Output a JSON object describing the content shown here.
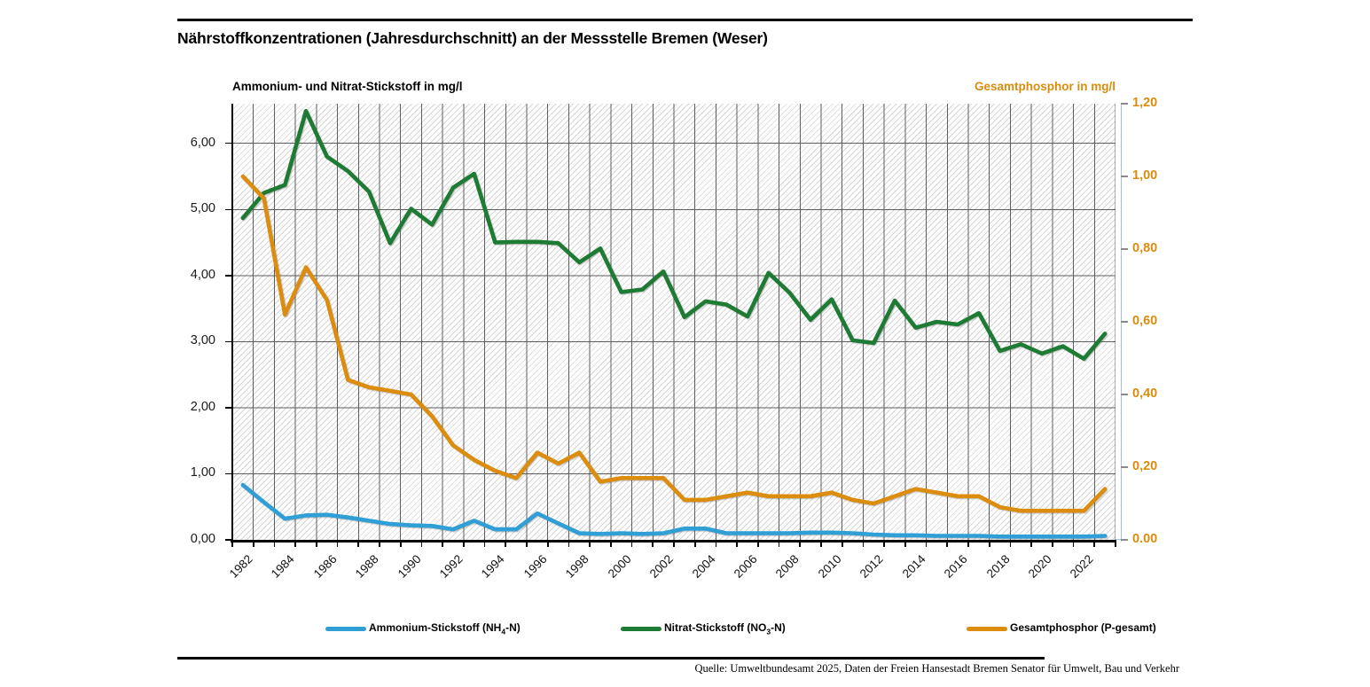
{
  "header": {
    "title": "Nährstoffkonzentrationen (Jahresdurchschnitt) an der Messstelle Bremen (Weser)"
  },
  "axes": {
    "left_title": "Ammonium- und Nitrat-Stickstoff in mg/l",
    "right_title": "Gesamtphosphor in mg/l",
    "left_ticks": [
      "0,00",
      "1,00",
      "2,00",
      "3,00",
      "4,00",
      "5,00",
      "6,00"
    ],
    "right_ticks": [
      "0.00",
      "0,20",
      "0,40",
      "0,60",
      "0,80",
      "1,00",
      "1,20"
    ],
    "x_tick_labels": [
      "1982",
      "1984",
      "1986",
      "1988",
      "1990",
      "1992",
      "1994",
      "1996",
      "1998",
      "2000",
      "2002",
      "2004",
      "2006",
      "2008",
      "2010",
      "2012",
      "2014",
      "2016",
      "2018",
      "2020",
      "2022"
    ]
  },
  "colors": {
    "ammonium": "#2f9fd6",
    "nitrat": "#1d7b34",
    "phosphor": "#dd8d0e",
    "grid": "#4d4d4d",
    "right_axis": "#a9c1d3"
  },
  "legend": [
    {
      "pre": "Ammonium-Stickstoff (NH",
      "sub": "4",
      "post": "-N)",
      "color_key": "ammonium"
    },
    {
      "pre": "Nitrat-Stickstoff (NO",
      "sub": "3",
      "post": "-N)",
      "color_key": "nitrat"
    },
    {
      "pre": "Gesamtphosphor (P-gesamt)",
      "sub": "",
      "post": "",
      "color_key": "phosphor"
    }
  ],
  "footer": {
    "source": "Quelle: Umweltbundesamt 2025, Daten der Freien Hansestadt Bremen Senator für Umwelt, Bau und Verkehr"
  },
  "chart_data": {
    "type": "line",
    "title": "Nährstoffkonzentrationen (Jahresdurchschnitt) an der Messstelle Bremen (Weser)",
    "xlabel": "",
    "ylabel_left": "Ammonium- und Nitrat-Stickstoff in mg/l",
    "ylabel_right": "Gesamtphosphor in mg/l",
    "left_ylim": [
      0,
      6.6
    ],
    "right_ylim": [
      0,
      1.2
    ],
    "grid": true,
    "legend_position": "bottom",
    "x": [
      1982,
      1983,
      1984,
      1985,
      1986,
      1987,
      1988,
      1989,
      1990,
      1991,
      1992,
      1993,
      1994,
      1995,
      1996,
      1997,
      1998,
      1999,
      2000,
      2001,
      2002,
      2003,
      2004,
      2005,
      2006,
      2007,
      2008,
      2009,
      2010,
      2011,
      2012,
      2013,
      2014,
      2015,
      2016,
      2017,
      2018,
      2019,
      2020,
      2021,
      2022,
      2023
    ],
    "series": [
      {
        "name": "Ammonium-Stickstoff (NH4-N)",
        "axis": "left",
        "color_key": "ammonium",
        "values": [
          0.83,
          0.57,
          0.32,
          0.37,
          0.38,
          0.34,
          0.29,
          0.24,
          0.22,
          0.21,
          0.16,
          0.29,
          0.16,
          0.16,
          0.4,
          0.25,
          0.1,
          0.09,
          0.1,
          0.09,
          0.1,
          0.17,
          0.17,
          0.1,
          0.1,
          0.1,
          0.1,
          0.11,
          0.11,
          0.1,
          0.08,
          0.07,
          0.07,
          0.06,
          0.06,
          0.06,
          0.05,
          0.05,
          0.05,
          0.05,
          0.05,
          0.06
        ]
      },
      {
        "name": "Nitrat-Stickstoff (NO3-N)",
        "axis": "left",
        "color_key": "nitrat",
        "values": [
          4.87,
          5.25,
          5.37,
          6.49,
          5.8,
          5.58,
          5.27,
          4.49,
          5.01,
          4.77,
          5.33,
          5.54,
          4.5,
          4.51,
          4.51,
          4.49,
          4.2,
          4.41,
          3.75,
          3.79,
          4.06,
          3.37,
          3.61,
          3.56,
          3.38,
          4.04,
          3.74,
          3.33,
          3.64,
          3.02,
          2.98,
          3.62,
          3.21,
          3.3,
          3.26,
          3.43,
          2.86,
          2.96,
          2.82,
          2.93,
          2.74,
          3.12
        ]
      },
      {
        "name": "Gesamtphosphor (P-gesamt)",
        "axis": "right",
        "color_key": "phosphor",
        "values": [
          1.0,
          0.94,
          0.62,
          0.75,
          0.66,
          0.44,
          0.42,
          0.41,
          0.4,
          0.34,
          0.26,
          0.22,
          0.19,
          0.17,
          0.24,
          0.21,
          0.24,
          0.16,
          0.17,
          0.17,
          0.17,
          0.11,
          0.11,
          0.12,
          0.13,
          0.12,
          0.12,
          0.12,
          0.13,
          0.11,
          0.1,
          0.12,
          0.14,
          0.13,
          0.12,
          0.12,
          0.09,
          0.08,
          0.08,
          0.08,
          0.08,
          0.14
        ]
      }
    ]
  }
}
